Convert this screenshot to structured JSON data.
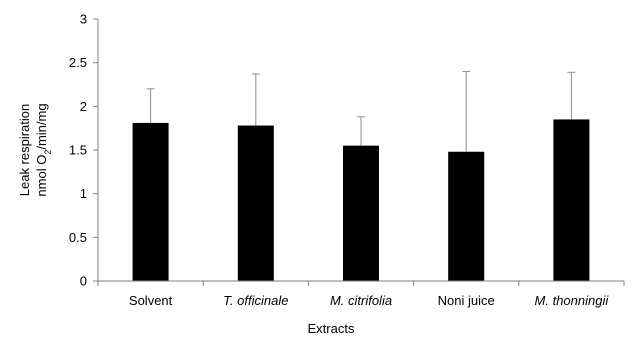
{
  "chart_data": {
    "type": "bar",
    "title": "",
    "xlabel": "Extracts",
    "ylabel": {
      "line1": "Leak respiration",
      "line2_prefix": "nmol O",
      "line2_subscript": "2",
      "line2_suffix": "/min/mg"
    },
    "categories": [
      {
        "label": "Solvent",
        "italic": false
      },
      {
        "label": "T. officinale",
        "italic": true
      },
      {
        "label": "M. citrifolia",
        "italic": true
      },
      {
        "label": "Noni juice",
        "italic": false
      },
      {
        "label": "M. thonningii",
        "italic": true
      }
    ],
    "values": [
      1.81,
      1.78,
      1.55,
      1.48,
      1.85
    ],
    "error_upper": [
      2.2,
      2.37,
      1.88,
      2.4,
      2.39
    ],
    "ylim": [
      0,
      3
    ],
    "yticks": [
      "0",
      "0.5",
      "1",
      "1.5",
      "2",
      "2.5",
      "3"
    ],
    "grid": false,
    "legend": "none",
    "colors": {
      "bar": "#000000",
      "axis": "#7f7f7f",
      "error": "#8c8c8c"
    }
  }
}
